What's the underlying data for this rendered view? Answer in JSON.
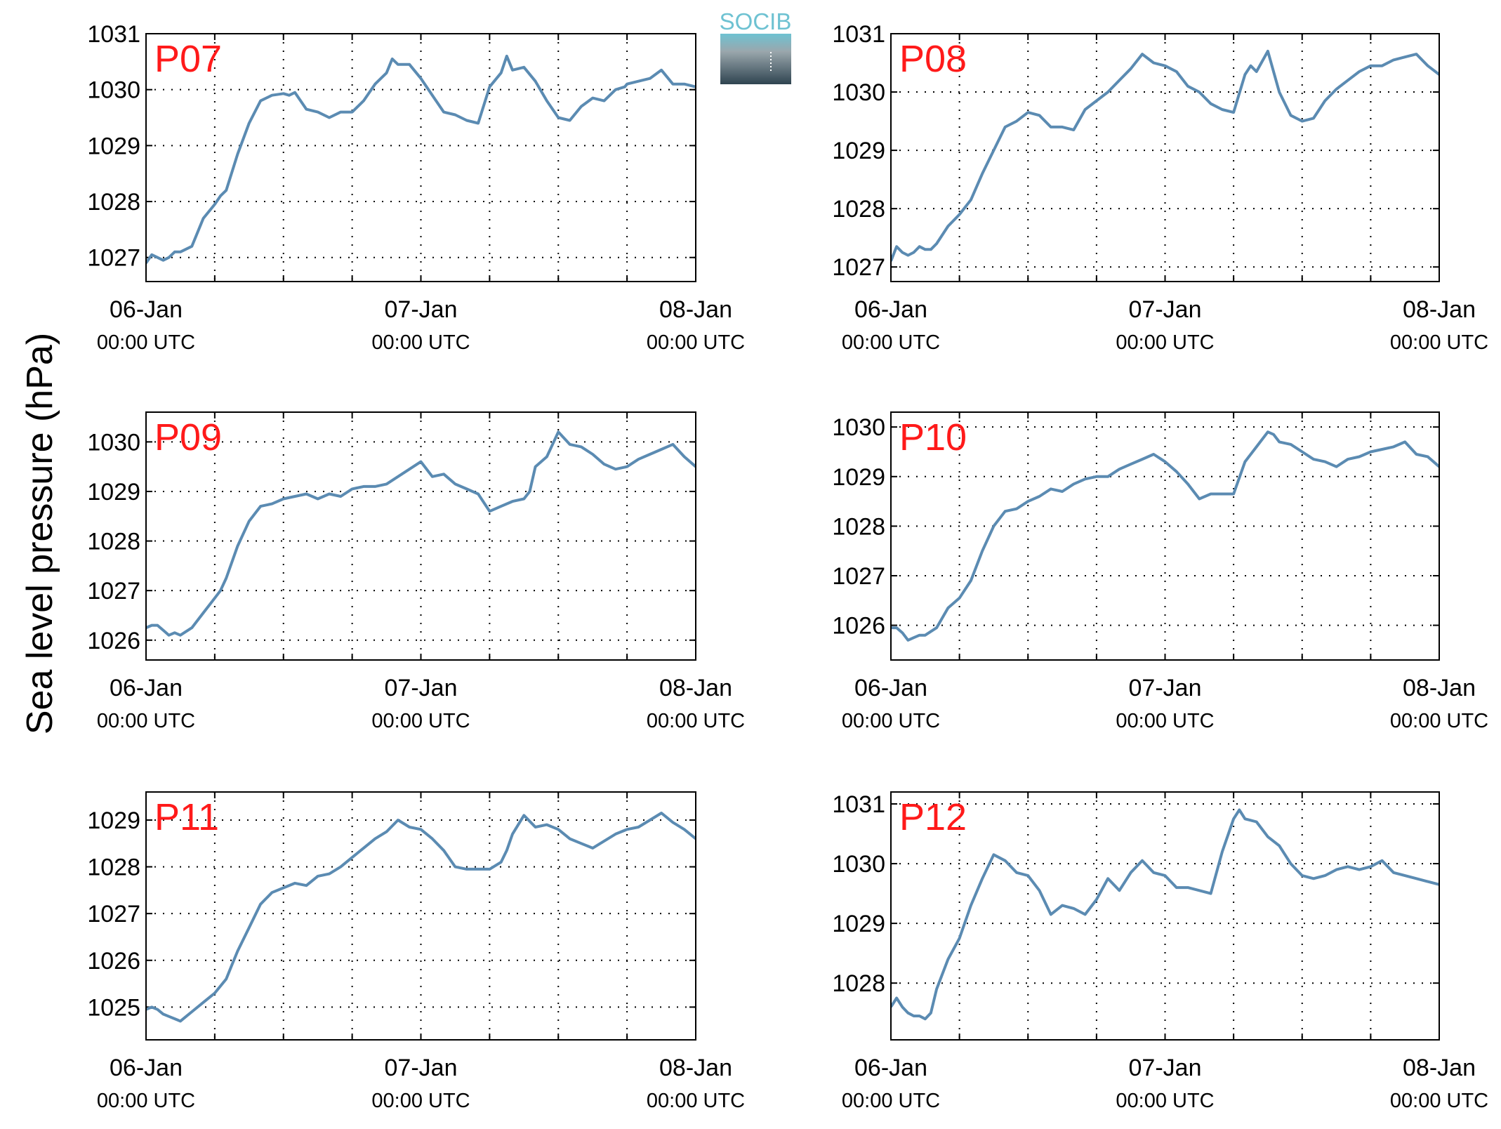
{
  "figure": {
    "ylabel": "Sea level pressure (hPa)",
    "line_color": "#5b8bb2",
    "label_color": "#ff1a1a"
  },
  "logo": {
    "text": "SOCIB",
    "color_top": "#6ec2d2",
    "color_bottom": "#2f4450"
  },
  "x_ticks": [
    {
      "date": "06-Jan",
      "time": "00:00 UTC"
    },
    {
      "date": "07-Jan",
      "time": "00:00 UTC"
    },
    {
      "date": "08-Jan",
      "time": "00:00 UTC"
    }
  ],
  "chart_data": [
    {
      "type": "line",
      "station": "P07",
      "x_unit": "hours since 06-Jan 00:00 UTC",
      "xlim": [
        0,
        48
      ],
      "ylim": [
        1026.57,
        1031
      ],
      "yticks": [
        1027,
        1028,
        1029,
        1030,
        1031
      ],
      "grid": true,
      "x": [
        0,
        0.5,
        1,
        1.5,
        2,
        2.5,
        3,
        4,
        5,
        6,
        6.5,
        7,
        8,
        9,
        10,
        11,
        12,
        12.5,
        13,
        14,
        15,
        16,
        17,
        18,
        19,
        20,
        21,
        21.5,
        22,
        23,
        24,
        25,
        26,
        27,
        28,
        29,
        30,
        31,
        31.5,
        32,
        33,
        34,
        35,
        36,
        37,
        38,
        39,
        40,
        41,
        41.8,
        42,
        43,
        44,
        45,
        46,
        47,
        48
      ],
      "y": [
        1026.9,
        1027.05,
        1027.0,
        1026.95,
        1027.0,
        1027.1,
        1027.1,
        1027.2,
        1027.7,
        1027.95,
        1028.1,
        1028.2,
        1028.85,
        1029.4,
        1029.8,
        1029.9,
        1029.93,
        1029.9,
        1029.95,
        1029.65,
        1029.6,
        1029.5,
        1029.6,
        1029.6,
        1029.8,
        1030.1,
        1030.3,
        1030.55,
        1030.45,
        1030.45,
        1030.2,
        1029.9,
        1029.6,
        1029.55,
        1029.45,
        1029.4,
        1030.05,
        1030.3,
        1030.6,
        1030.35,
        1030.4,
        1030.15,
        1029.8,
        1029.5,
        1029.45,
        1029.7,
        1029.85,
        1029.8,
        1030.0,
        1030.05,
        1030.1,
        1030.15,
        1030.2,
        1030.35,
        1030.1,
        1030.1,
        1030.05
      ]
    },
    {
      "type": "line",
      "station": "P08",
      "x_unit": "hours since 06-Jan 00:00 UTC",
      "xlim": [
        0,
        48
      ],
      "ylim": [
        1026.75,
        1031
      ],
      "yticks": [
        1027,
        1028,
        1029,
        1030,
        1031
      ],
      "grid": true,
      "x": [
        0,
        0.5,
        1,
        1.5,
        2,
        2.5,
        3,
        3.5,
        4,
        5,
        6,
        7,
        8,
        9,
        10,
        11,
        12,
        13,
        14,
        15,
        16,
        17,
        18,
        19,
        20,
        21,
        22,
        23,
        24,
        25,
        26,
        27,
        28,
        29,
        30,
        31,
        31.5,
        32,
        33,
        34,
        35,
        36,
        37,
        38,
        39,
        40,
        41,
        42,
        43,
        44,
        45,
        46,
        47,
        48
      ],
      "y": [
        1027.1,
        1027.35,
        1027.25,
        1027.2,
        1027.25,
        1027.35,
        1027.3,
        1027.3,
        1027.4,
        1027.7,
        1027.9,
        1028.15,
        1028.6,
        1029.0,
        1029.4,
        1029.5,
        1029.65,
        1029.6,
        1029.4,
        1029.4,
        1029.35,
        1029.7,
        1029.85,
        1030.0,
        1030.2,
        1030.4,
        1030.65,
        1030.5,
        1030.45,
        1030.35,
        1030.1,
        1030.0,
        1029.8,
        1029.7,
        1029.65,
        1030.3,
        1030.45,
        1030.35,
        1030.7,
        1030.0,
        1029.6,
        1029.5,
        1029.55,
        1029.85,
        1030.05,
        1030.2,
        1030.35,
        1030.45,
        1030.45,
        1030.55,
        1030.6,
        1030.65,
        1030.45,
        1030.3
      ]
    },
    {
      "type": "line",
      "station": "P09",
      "x_unit": "hours since 06-Jan 00:00 UTC",
      "xlim": [
        0,
        48
      ],
      "ylim": [
        1025.6,
        1030.6
      ],
      "yticks": [
        1026,
        1027,
        1028,
        1029,
        1030
      ],
      "grid": true,
      "x": [
        0,
        0.5,
        1,
        1.5,
        2,
        2.5,
        3,
        4,
        5,
        6,
        6.5,
        7,
        8,
        9,
        10,
        11,
        12,
        13,
        14,
        15,
        16,
        17,
        18,
        19,
        20,
        21,
        22,
        23,
        24,
        25,
        26,
        27,
        27.5,
        28,
        29,
        30,
        31,
        32,
        33,
        33.5,
        34,
        35,
        36,
        37,
        38,
        39,
        40,
        41,
        42,
        43,
        44,
        45,
        46,
        47,
        48
      ],
      "y": [
        1026.25,
        1026.3,
        1026.3,
        1026.2,
        1026.1,
        1026.15,
        1026.1,
        1026.25,
        1026.55,
        1026.85,
        1027.0,
        1027.25,
        1027.9,
        1028.4,
        1028.7,
        1028.75,
        1028.85,
        1028.9,
        1028.95,
        1028.85,
        1028.95,
        1028.9,
        1029.05,
        1029.1,
        1029.1,
        1029.15,
        1029.3,
        1029.45,
        1029.6,
        1029.3,
        1029.35,
        1029.15,
        1029.1,
        1029.05,
        1028.95,
        1028.6,
        1028.7,
        1028.8,
        1028.85,
        1029.0,
        1029.5,
        1029.7,
        1030.2,
        1029.95,
        1029.9,
        1029.75,
        1029.55,
        1029.45,
        1029.5,
        1029.65,
        1029.75,
        1029.85,
        1029.95,
        1029.7,
        1029.5
      ]
    },
    {
      "type": "line",
      "station": "P10",
      "x_unit": "hours since 06-Jan 00:00 UTC",
      "xlim": [
        0,
        48
      ],
      "ylim": [
        1025.3,
        1030.3
      ],
      "yticks": [
        1026,
        1027,
        1028,
        1029,
        1030
      ],
      "grid": true,
      "x": [
        0,
        0.5,
        1,
        1.5,
        2,
        2.5,
        3,
        4,
        5,
        6,
        7,
        8,
        9,
        10,
        11,
        12,
        13,
        14,
        15,
        16,
        17,
        18,
        19,
        20,
        21,
        22,
        23,
        24,
        25,
        26,
        27,
        28,
        29,
        30,
        31,
        32,
        33,
        33.5,
        34,
        35,
        36,
        37,
        38,
        39,
        40,
        41,
        42,
        43,
        44,
        45,
        46,
        47,
        48
      ],
      "y": [
        1025.95,
        1025.95,
        1025.85,
        1025.7,
        1025.75,
        1025.8,
        1025.8,
        1025.95,
        1026.35,
        1026.55,
        1026.9,
        1027.5,
        1028.0,
        1028.3,
        1028.35,
        1028.5,
        1028.6,
        1028.75,
        1028.7,
        1028.85,
        1028.95,
        1029.0,
        1029.0,
        1029.15,
        1029.25,
        1029.35,
        1029.45,
        1029.3,
        1029.1,
        1028.85,
        1028.55,
        1028.65,
        1028.65,
        1028.65,
        1029.3,
        1029.6,
        1029.9,
        1029.85,
        1029.7,
        1029.65,
        1029.5,
        1029.35,
        1029.3,
        1029.2,
        1029.35,
        1029.4,
        1029.5,
        1029.55,
        1029.6,
        1029.7,
        1029.45,
        1029.4,
        1029.2
      ]
    },
    {
      "type": "line",
      "station": "P11",
      "x_unit": "hours since 06-Jan 00:00 UTC",
      "xlim": [
        0,
        48
      ],
      "ylim": [
        1024.3,
        1029.6
      ],
      "yticks": [
        1025,
        1026,
        1027,
        1028,
        1029
      ],
      "grid": true,
      "x": [
        0,
        0.5,
        1,
        1.5,
        2,
        2.5,
        3,
        3.5,
        4,
        5,
        6,
        7,
        7.5,
        8,
        9,
        10,
        11,
        12,
        13,
        14,
        15,
        16,
        17,
        18,
        19,
        20,
        21,
        22,
        23,
        24,
        25,
        26,
        27,
        28,
        29,
        30,
        31,
        31.5,
        32,
        33,
        34,
        35,
        36,
        37,
        38,
        39,
        40,
        41,
        42,
        43,
        44,
        45,
        46,
        47,
        48
      ],
      "y": [
        1024.95,
        1025.0,
        1024.95,
        1024.85,
        1024.8,
        1024.75,
        1024.7,
        1024.8,
        1024.9,
        1025.1,
        1025.3,
        1025.6,
        1025.9,
        1026.2,
        1026.7,
        1027.2,
        1027.45,
        1027.55,
        1027.65,
        1027.6,
        1027.8,
        1027.85,
        1028.0,
        1028.2,
        1028.4,
        1028.6,
        1028.75,
        1029.0,
        1028.85,
        1028.8,
        1028.6,
        1028.35,
        1028.0,
        1027.95,
        1027.95,
        1027.95,
        1028.1,
        1028.35,
        1028.7,
        1029.1,
        1028.85,
        1028.9,
        1028.8,
        1028.6,
        1028.5,
        1028.4,
        1028.55,
        1028.7,
        1028.8,
        1028.85,
        1029.0,
        1029.15,
        1028.95,
        1028.8,
        1028.6
      ]
    },
    {
      "type": "line",
      "station": "P12",
      "x_unit": "hours since 06-Jan 00:00 UTC",
      "xlim": [
        0,
        48
      ],
      "ylim": [
        1027.05,
        1031.2
      ],
      "yticks": [
        1028,
        1029,
        1030,
        1031
      ],
      "grid": true,
      "x": [
        0,
        0.5,
        1,
        1.5,
        2,
        2.5,
        3,
        3.5,
        4,
        5,
        6,
        7,
        8,
        9,
        10,
        11,
        12,
        13,
        14,
        15,
        16,
        17,
        18,
        19,
        20,
        21,
        22,
        23,
        24,
        25,
        26,
        27,
        28,
        29,
        30,
        30.5,
        31,
        32,
        33,
        34,
        35,
        36,
        37,
        38,
        39,
        40,
        41,
        42,
        43,
        44,
        45,
        46,
        47,
        48
      ],
      "y": [
        1027.6,
        1027.75,
        1027.6,
        1027.5,
        1027.45,
        1027.45,
        1027.4,
        1027.5,
        1027.9,
        1028.4,
        1028.75,
        1029.3,
        1029.75,
        1030.15,
        1030.05,
        1029.85,
        1029.8,
        1029.55,
        1029.15,
        1029.3,
        1029.25,
        1029.15,
        1029.4,
        1029.75,
        1029.55,
        1029.85,
        1030.05,
        1029.85,
        1029.8,
        1029.6,
        1029.6,
        1029.55,
        1029.5,
        1030.2,
        1030.75,
        1030.9,
        1030.75,
        1030.7,
        1030.45,
        1030.3,
        1030.0,
        1029.8,
        1029.75,
        1029.8,
        1029.9,
        1029.95,
        1029.9,
        1029.95,
        1030.05,
        1029.85,
        1029.8,
        1029.75,
        1029.7,
        1029.65
      ]
    }
  ]
}
